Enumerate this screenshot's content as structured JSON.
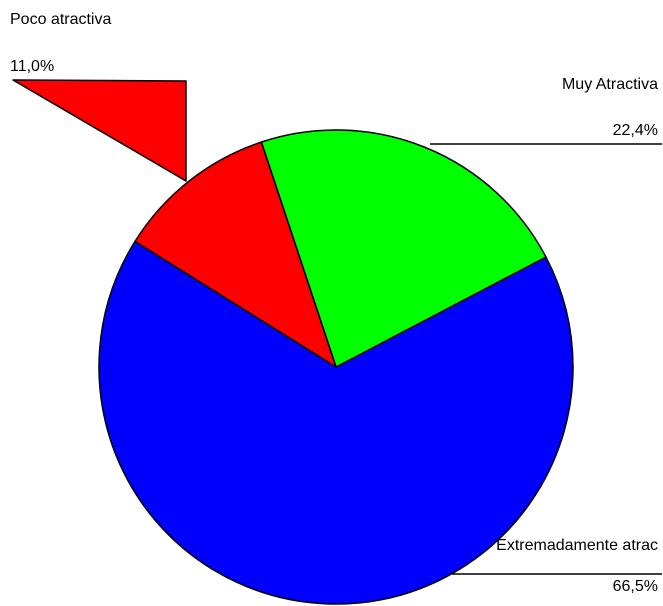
{
  "chart_data": {
    "type": "pie",
    "title": "",
    "slices": [
      {
        "label": "Poco atractiva",
        "value": 11.0,
        "value_label": "11,0%",
        "color": "#ff0000"
      },
      {
        "label": "Muy Atractiva",
        "value": 22.4,
        "value_label": "22,4%",
        "color": "#00ff00"
      },
      {
        "label": "Extremadamente atrac",
        "value": 66.5,
        "value_label": "66,5%",
        "color": "#0000ff"
      }
    ],
    "legend": "none",
    "edge_color": "#000000"
  }
}
